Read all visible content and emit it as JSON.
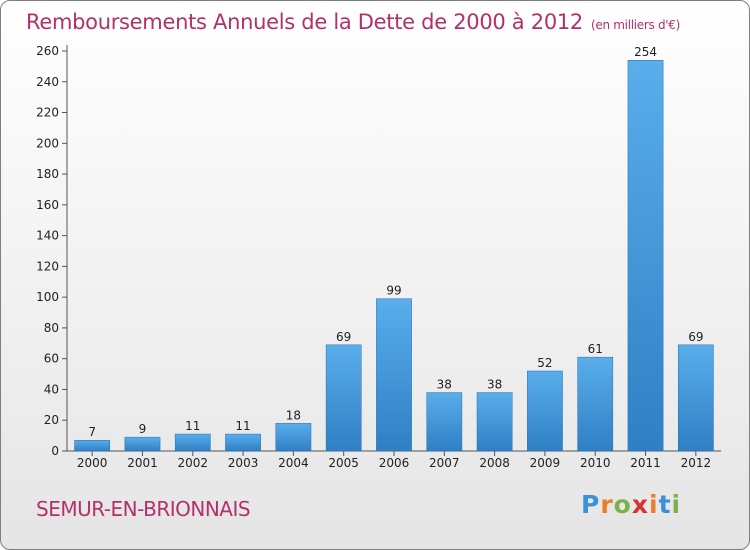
{
  "header": {
    "title": "Remboursements Annuels de la Dette de 2000 à 2012",
    "unit": "(en milliers d'€)"
  },
  "footer": {
    "commune": "SEMUR-EN-BRIONNAIS",
    "logo": {
      "letters": [
        "P",
        "r",
        "o",
        "x",
        "i",
        "t",
        "i"
      ],
      "colors": [
        "#3d8fd6",
        "#e97e2e",
        "#79b34a",
        "#d8322b",
        "#e97e2e",
        "#3d8fd6",
        "#79b34a"
      ]
    }
  },
  "chart_data": {
    "type": "bar",
    "categories": [
      "2000",
      "2001",
      "2002",
      "2003",
      "2004",
      "2005",
      "2006",
      "2007",
      "2008",
      "2009",
      "2010",
      "2011",
      "2012"
    ],
    "values": [
      7,
      9,
      11,
      11,
      18,
      69,
      99,
      38,
      38,
      52,
      61,
      254,
      69
    ],
    "data_labels": [
      "7",
      "9",
      "11",
      "11",
      "18",
      "69",
      "99",
      "38",
      "38",
      "52",
      "61",
      "254",
      "69"
    ],
    "ylim": [
      0,
      260
    ],
    "yticks": [
      0,
      20,
      40,
      60,
      80,
      100,
      120,
      140,
      160,
      180,
      200,
      220,
      240,
      260
    ],
    "grid": false,
    "colors": {
      "bar": "#4a9fe0",
      "text": "#222222"
    }
  }
}
